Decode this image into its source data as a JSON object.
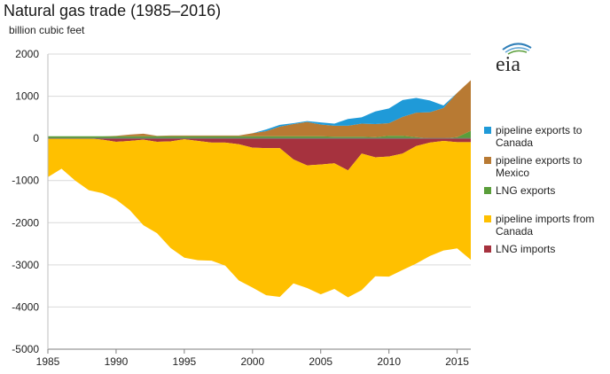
{
  "title": "Natural gas trade (1985–2016)",
  "subtitle": "billion cubic feet",
  "logo_text": "eia",
  "chart_data": {
    "type": "area",
    "title": "Natural gas trade (1985–2016)",
    "ylabel": "billion cubic feet",
    "xlim": [
      1985,
      2016
    ],
    "ylim": [
      -5000,
      2000
    ],
    "x_ticks": [
      "1985",
      "1990",
      "1995",
      "2000",
      "2005",
      "2010",
      "2015"
    ],
    "y_ticks": [
      "2000",
      "1000",
      "0",
      "-1000",
      "-2000",
      "-3000",
      "-4000",
      "-5000"
    ],
    "grid": true,
    "legend_position": "right",
    "x": [
      1985,
      1986,
      1987,
      1988,
      1989,
      1990,
      1991,
      1992,
      1993,
      1994,
      1995,
      1996,
      1997,
      1998,
      1999,
      2000,
      2001,
      2002,
      2003,
      2004,
      2005,
      2006,
      2007,
      2008,
      2009,
      2010,
      2011,
      2012,
      2013,
      2014,
      2015,
      2016
    ],
    "export_series": [
      {
        "name": "LNG exports",
        "color": "#5a9e3a",
        "values": [
          50,
          50,
          50,
          50,
          50,
          50,
          50,
          50,
          50,
          50,
          50,
          50,
          50,
          50,
          50,
          50,
          50,
          50,
          50,
          50,
          50,
          40,
          40,
          40,
          30,
          60,
          60,
          30,
          0,
          0,
          30,
          180
        ]
      },
      {
        "name": "pipeline exports to Mexico",
        "color": "#b87a33",
        "values": [
          0,
          0,
          0,
          0,
          0,
          10,
          40,
          60,
          10,
          20,
          20,
          20,
          20,
          20,
          20,
          70,
          120,
          230,
          290,
          340,
          280,
          260,
          260,
          310,
          310,
          300,
          450,
          580,
          620,
          720,
          1050,
          1200
        ]
      },
      {
        "name": "pipeline exports to Canada",
        "color": "#1f9ad8",
        "values": [
          0,
          0,
          0,
          0,
          0,
          0,
          0,
          0,
          0,
          0,
          0,
          0,
          0,
          0,
          0,
          0,
          40,
          40,
          20,
          20,
          50,
          50,
          160,
          150,
          300,
          350,
          400,
          350,
          280,
          60,
          0,
          0
        ]
      }
    ],
    "import_series": [
      {
        "name": "LNG imports",
        "color": "#a6323e",
        "values": [
          0,
          0,
          0,
          0,
          30,
          80,
          60,
          30,
          80,
          70,
          20,
          60,
          100,
          100,
          140,
          220,
          230,
          230,
          500,
          640,
          620,
          590,
          760,
          360,
          450,
          430,
          360,
          180,
          100,
          60,
          90,
          90
        ]
      },
      {
        "name": "pipeline imports from Canada",
        "color": "#ffc000",
        "values": [
          920,
          720,
          1000,
          1230,
          1270,
          1370,
          1640,
          2030,
          2170,
          2530,
          2810,
          2830,
          2800,
          2920,
          3230,
          3320,
          3490,
          3530,
          2940,
          2910,
          3080,
          2980,
          3010,
          3240,
          2820,
          2850,
          2760,
          2790,
          2690,
          2600,
          2520,
          2790
        ]
      }
    ],
    "legend": [
      {
        "label_lines": [
          "pipeline exports to",
          "Canada"
        ],
        "color": "#1f9ad8"
      },
      {
        "label_lines": [
          "pipeline exports to",
          "Mexico"
        ],
        "color": "#b87a33"
      },
      {
        "label_lines": [
          "LNG exports"
        ],
        "color": "#5a9e3a"
      },
      {
        "label_lines": [
          "pipeline imports from",
          "Canada"
        ],
        "color": "#ffc000"
      },
      {
        "label_lines": [
          "LNG imports"
        ],
        "color": "#a6323e"
      }
    ]
  }
}
